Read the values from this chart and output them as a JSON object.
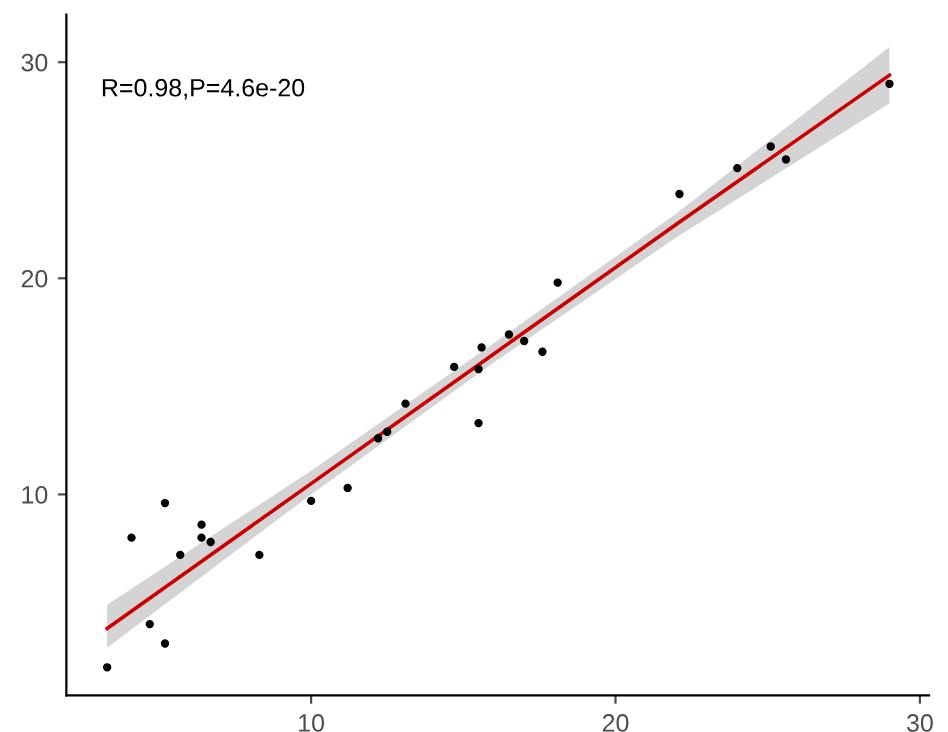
{
  "chart_data": {
    "type": "scatter",
    "xlim": [
      1.96,
      30.3
    ],
    "ylim": [
      0.7,
      32.2
    ],
    "xticks": [
      10,
      20,
      30
    ],
    "yticks": [
      10,
      20,
      30
    ],
    "grid": false,
    "legend": false,
    "annotations": [
      "R=0.98,P=4.6e-20"
    ],
    "series": [
      {
        "color": "#000000",
        "marker": "circle",
        "x": [
          3.3,
          4.1,
          4.7,
          5.2,
          5.2,
          5.7,
          6.4,
          6.4,
          6.7,
          8.3,
          10.0,
          11.2,
          12.2,
          12.5,
          13.1,
          14.7,
          15.5,
          15.5,
          15.6,
          16.5,
          17.0,
          17.6,
          18.1,
          22.1,
          24.0,
          25.1,
          25.6,
          29.0
        ],
        "values": [
          2.0,
          8.0,
          4.0,
          9.6,
          3.1,
          7.2,
          8.6,
          8.0,
          7.8,
          7.2,
          9.7,
          10.3,
          12.6,
          12.9,
          14.2,
          15.9,
          15.8,
          13.3,
          16.8,
          17.4,
          17.1,
          16.6,
          19.8,
          23.9,
          25.1,
          26.1,
          25.5,
          29.0
        ]
      },
      {
        "type": "line",
        "color": "#cc0000",
        "line_style": "solid",
        "x": [
          3.3,
          10,
          16,
          22,
          29
        ],
        "values": [
          3.8,
          10.5,
          16.5,
          22.5,
          29.4
        ],
        "lower": [
          2.9,
          10.0,
          16.1,
          21.9,
          28.1
        ],
        "upper": [
          4.9,
          11.1,
          17.0,
          23.0,
          30.7
        ]
      }
    ]
  }
}
